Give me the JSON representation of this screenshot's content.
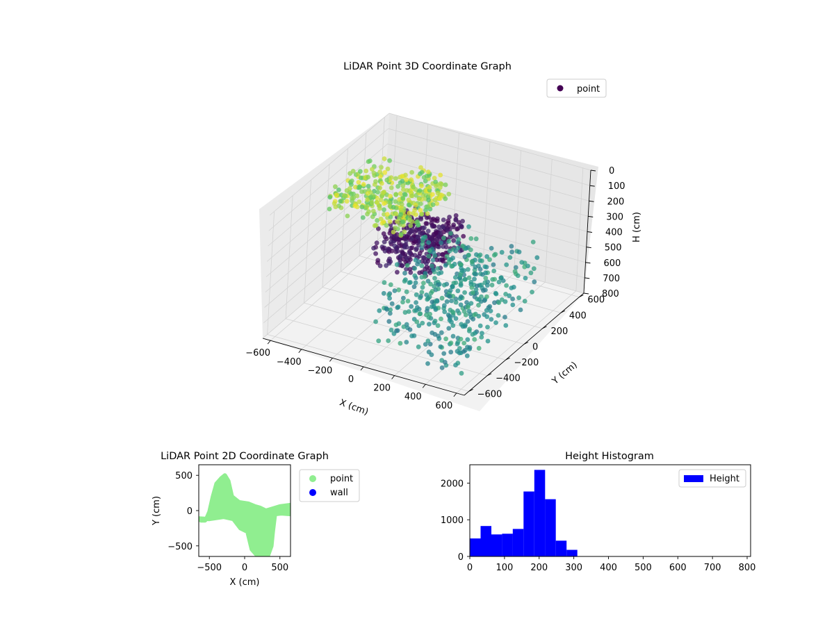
{
  "chart_data": [
    {
      "type": "scatter",
      "projection": "3d",
      "title": "LiDAR Point 3D Coordinate Graph",
      "xlabel": "X (cm)",
      "ylabel": "Y (cm)",
      "zlabel": "H (cm)",
      "xlim": [
        -650,
        650
      ],
      "ylim": [
        -650,
        650
      ],
      "zlim": [
        0,
        800
      ],
      "z_inverted": true,
      "x_ticks": [
        -600,
        -400,
        -200,
        0,
        200,
        400,
        600
      ],
      "y_ticks": [
        -600,
        -400,
        -200,
        0,
        200,
        400,
        600
      ],
      "z_ticks": [
        0,
        100,
        200,
        300,
        400,
        500,
        600,
        700,
        800
      ],
      "grid": true,
      "colormap": "viridis",
      "legend": {
        "placement": "top-right",
        "entries": [
          {
            "label": "point",
            "color": "#440154"
          }
        ]
      },
      "point_groups": [
        {
          "x_range": [
            -620,
            -80
          ],
          "y_range": [
            -100,
            450
          ],
          "h_range": [
            140,
            270
          ],
          "color_hint": "yellow-green"
        },
        {
          "x_range": [
            -80,
            300
          ],
          "y_range": [
            -500,
            -80
          ],
          "h_range": [
            20,
            250
          ],
          "color_hint": "purple"
        },
        {
          "x_range": [
            0,
            620
          ],
          "y_range": [
            -620,
            200
          ],
          "h_range": [
            250,
            700
          ],
          "color_hint": "teal-green"
        }
      ]
    },
    {
      "type": "scatter",
      "title": "LiDAR Point 2D Coordinate Graph",
      "xlabel": "X (cm)",
      "ylabel": "Y (cm)",
      "xlim": [
        -650,
        650
      ],
      "ylim": [
        -650,
        650
      ],
      "x_ticks": [
        -500,
        0,
        500
      ],
      "y_ticks": [
        -500,
        0,
        500
      ],
      "legend": {
        "placement": "outside-right",
        "entries": [
          {
            "label": "point",
            "color": "#90ee90"
          },
          {
            "label": "wall",
            "color": "#0000ff"
          }
        ]
      },
      "point_region": [
        [
          -640,
          -110
        ],
        [
          -620,
          -140
        ],
        [
          -560,
          -140
        ],
        [
          -540,
          -110
        ],
        [
          -500,
          -20
        ],
        [
          -450,
          200
        ],
        [
          -400,
          380
        ],
        [
          -330,
          460
        ],
        [
          -280,
          500
        ],
        [
          -230,
          420
        ],
        [
          -180,
          200
        ],
        [
          -80,
          120
        ],
        [
          50,
          100
        ],
        [
          150,
          60
        ],
        [
          220,
          40
        ],
        [
          300,
          0
        ],
        [
          400,
          30
        ],
        [
          500,
          60
        ],
        [
          650,
          80
        ],
        [
          650,
          -50
        ],
        [
          520,
          -40
        ],
        [
          430,
          -50
        ],
        [
          400,
          -300
        ],
        [
          380,
          -500
        ],
        [
          330,
          -640
        ],
        [
          180,
          -640
        ],
        [
          100,
          -550
        ],
        [
          40,
          -300
        ],
        [
          -60,
          -250
        ],
        [
          -160,
          -120
        ],
        [
          -300,
          -90
        ],
        [
          -500,
          -120
        ]
      ]
    },
    {
      "type": "bar",
      "title": "Height Histogram",
      "xlabel": "",
      "ylabel": "",
      "xlim": [
        0,
        810
      ],
      "ylim": [
        0,
        2500
      ],
      "x_ticks": [
        0,
        100,
        200,
        300,
        400,
        500,
        600,
        700,
        800
      ],
      "y_ticks": [
        0,
        1000,
        2000
      ],
      "bar_color": "#0000ff",
      "legend": {
        "placement": "top-right",
        "entries": [
          {
            "label": "Height",
            "color": "#0000ff"
          }
        ]
      },
      "bins": [
        {
          "start": 0,
          "end": 31,
          "count": 490
        },
        {
          "start": 31,
          "end": 62,
          "count": 830
        },
        {
          "start": 62,
          "end": 93,
          "count": 600
        },
        {
          "start": 93,
          "end": 124,
          "count": 620
        },
        {
          "start": 124,
          "end": 155,
          "count": 750
        },
        {
          "start": 155,
          "end": 186,
          "count": 1770
        },
        {
          "start": 186,
          "end": 217,
          "count": 2360
        },
        {
          "start": 217,
          "end": 248,
          "count": 1560
        },
        {
          "start": 248,
          "end": 279,
          "count": 430
        },
        {
          "start": 279,
          "end": 310,
          "count": 180
        }
      ]
    }
  ]
}
